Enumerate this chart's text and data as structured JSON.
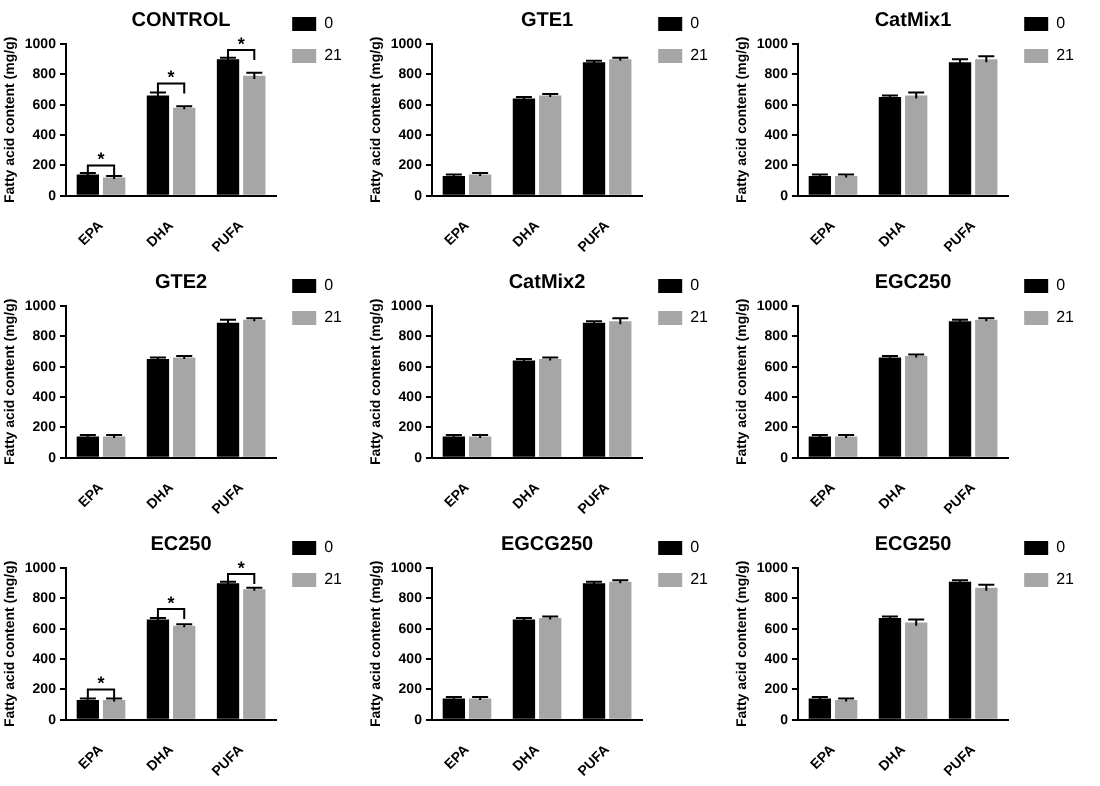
{
  "chart_data": [
    {
      "type": "bar",
      "title": "CONTROL",
      "ylabel": "Fatty acid content (mg/g)",
      "categories": [
        "EPA",
        "DHA",
        "PUFA"
      ],
      "ylim": [
        0,
        1000
      ],
      "yticks": [
        0,
        200,
        400,
        600,
        800,
        1000
      ],
      "legend": "top right",
      "series": [
        {
          "name": "0",
          "color": "#000000",
          "values": [
            140,
            660,
            900
          ],
          "errors": [
            10,
            20,
            10
          ]
        },
        {
          "name": "21",
          "color": "#a6a6a6",
          "values": [
            120,
            580,
            790
          ],
          "errors": [
            10,
            10,
            20
          ]
        }
      ],
      "annotations": [
        {
          "text": "*",
          "x": "EPA",
          "y": 200
        },
        {
          "text": "*",
          "x": "DHA",
          "y": 740
        },
        {
          "text": "*",
          "x": "PUFA",
          "y": 960
        }
      ]
    },
    {
      "type": "bar",
      "title": "GTE1",
      "ylabel": "Fatty acid content (mg/g)",
      "categories": [
        "EPA",
        "DHA",
        "PUFA"
      ],
      "ylim": [
        0,
        1000
      ],
      "yticks": [
        0,
        200,
        400,
        600,
        800,
        1000
      ],
      "legend": "top right",
      "series": [
        {
          "name": "0",
          "color": "#000000",
          "values": [
            130,
            640,
            880
          ],
          "errors": [
            10,
            10,
            10
          ]
        },
        {
          "name": "21",
          "color": "#a6a6a6",
          "values": [
            140,
            660,
            900
          ],
          "errors": [
            10,
            10,
            10
          ]
        }
      ]
    },
    {
      "type": "bar",
      "title": "CatMix1",
      "ylabel": "Fatty acid content (mg/g)",
      "categories": [
        "EPA",
        "DHA",
        "PUFA"
      ],
      "ylim": [
        0,
        1000
      ],
      "yticks": [
        0,
        200,
        400,
        600,
        800,
        1000
      ],
      "legend": "top right",
      "series": [
        {
          "name": "0",
          "color": "#000000",
          "values": [
            130,
            650,
            880
          ],
          "errors": [
            10,
            10,
            20
          ]
        },
        {
          "name": "21",
          "color": "#a6a6a6",
          "values": [
            130,
            660,
            900
          ],
          "errors": [
            10,
            20,
            20
          ]
        }
      ]
    },
    {
      "type": "bar",
      "title": "GTE2",
      "ylabel": "Fatty acid content (mg/g)",
      "categories": [
        "EPA",
        "DHA",
        "PUFA"
      ],
      "ylim": [
        0,
        1000
      ],
      "yticks": [
        0,
        200,
        400,
        600,
        800,
        1000
      ],
      "legend": "top right",
      "series": [
        {
          "name": "0",
          "color": "#000000",
          "values": [
            140,
            650,
            890
          ],
          "errors": [
            10,
            10,
            20
          ]
        },
        {
          "name": "21",
          "color": "#a6a6a6",
          "values": [
            140,
            660,
            910
          ],
          "errors": [
            10,
            10,
            10
          ]
        }
      ]
    },
    {
      "type": "bar",
      "title": "CatMix2",
      "ylabel": "Fatty acid content (mg/g)",
      "categories": [
        "EPA",
        "DHA",
        "PUFA"
      ],
      "ylim": [
        0,
        1000
      ],
      "yticks": [
        0,
        200,
        400,
        600,
        800,
        1000
      ],
      "legend": "top right",
      "series": [
        {
          "name": "0",
          "color": "#000000",
          "values": [
            140,
            640,
            890
          ],
          "errors": [
            10,
            10,
            10
          ]
        },
        {
          "name": "21",
          "color": "#a6a6a6",
          "values": [
            140,
            650,
            900
          ],
          "errors": [
            10,
            10,
            20
          ]
        }
      ]
    },
    {
      "type": "bar",
      "title": "EGC250",
      "ylabel": "Fatty acid content (mg/g)",
      "categories": [
        "EPA",
        "DHA",
        "PUFA"
      ],
      "ylim": [
        0,
        1000
      ],
      "yticks": [
        0,
        200,
        400,
        600,
        800,
        1000
      ],
      "legend": "top right",
      "series": [
        {
          "name": "0",
          "color": "#000000",
          "values": [
            140,
            660,
            900
          ],
          "errors": [
            10,
            10,
            10
          ]
        },
        {
          "name": "21",
          "color": "#a6a6a6",
          "values": [
            140,
            670,
            910
          ],
          "errors": [
            10,
            10,
            10
          ]
        }
      ]
    },
    {
      "type": "bar",
      "title": "EC250",
      "ylabel": "Fatty acid content (mg/g)",
      "categories": [
        "EPA",
        "DHA",
        "PUFA"
      ],
      "ylim": [
        0,
        1000
      ],
      "yticks": [
        0,
        200,
        400,
        600,
        800,
        1000
      ],
      "legend": "top right",
      "series": [
        {
          "name": "0",
          "color": "#000000",
          "values": [
            130,
            660,
            900
          ],
          "errors": [
            10,
            10,
            10
          ]
        },
        {
          "name": "21",
          "color": "#a6a6a6",
          "values": [
            130,
            620,
            860
          ],
          "errors": [
            10,
            10,
            10
          ]
        }
      ],
      "annotations": [
        {
          "text": "*",
          "x": "EPA",
          "y": 200
        },
        {
          "text": "*",
          "x": "DHA",
          "y": 730
        },
        {
          "text": "*",
          "x": "PUFA",
          "y": 960
        }
      ]
    },
    {
      "type": "bar",
      "title": "EGCG250",
      "ylabel": "Fatty acid content (mg/g)",
      "categories": [
        "EPA",
        "DHA",
        "PUFA"
      ],
      "ylim": [
        0,
        1000
      ],
      "yticks": [
        0,
        200,
        400,
        600,
        800,
        1000
      ],
      "legend": "top right",
      "series": [
        {
          "name": "0",
          "color": "#000000",
          "values": [
            140,
            660,
            900
          ],
          "errors": [
            10,
            10,
            10
          ]
        },
        {
          "name": "21",
          "color": "#a6a6a6",
          "values": [
            140,
            670,
            910
          ],
          "errors": [
            10,
            10,
            10
          ]
        }
      ]
    },
    {
      "type": "bar",
      "title": "ECG250",
      "ylabel": "Fatty acid content (mg/g)",
      "categories": [
        "EPA",
        "DHA",
        "PUFA"
      ],
      "ylim": [
        0,
        1000
      ],
      "yticks": [
        0,
        200,
        400,
        600,
        800,
        1000
      ],
      "legend": "top right",
      "series": [
        {
          "name": "0",
          "color": "#000000",
          "values": [
            140,
            670,
            910
          ],
          "errors": [
            10,
            10,
            10
          ]
        },
        {
          "name": "21",
          "color": "#a6a6a6",
          "values": [
            130,
            640,
            870
          ],
          "errors": [
            10,
            20,
            20
          ]
        }
      ]
    }
  ]
}
